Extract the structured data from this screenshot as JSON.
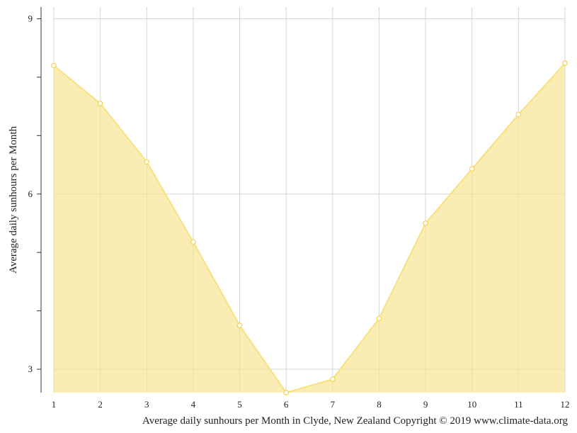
{
  "chart_data": {
    "type": "area",
    "categories": [
      "1",
      "2",
      "3",
      "4",
      "5",
      "6",
      "7",
      "8",
      "9",
      "10",
      "11",
      "12"
    ],
    "series": [
      {
        "values": [
          8.2,
          7.55,
          6.55,
          5.18,
          3.75,
          2.6,
          2.83,
          3.87,
          5.5,
          6.43,
          7.36,
          8.24
        ]
      }
    ],
    "ylabel": "Average daily sunhours per Month",
    "ylim": [
      2.6,
      9.2
    ],
    "y_ticks": [
      3,
      6,
      9
    ],
    "y_minor_ticks": [
      3,
      4,
      5,
      6,
      7,
      8,
      9
    ],
    "grid": true,
    "fill_color": "#f7e38a",
    "line_color": "#f7e27e",
    "point_color": "#f2d55c"
  },
  "caption": "Average daily sunhours per Month in Clyde, New Zealand Copyright © 2019 www.climate-data.org"
}
